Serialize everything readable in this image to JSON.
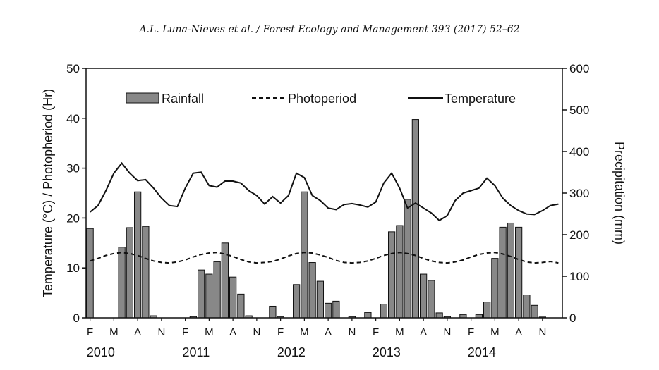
{
  "header": {
    "citation": "A.L. Luna-Nieves et al. / Forest Ecology and Management 393 (2017) 52–62"
  },
  "chart_data": {
    "type": "bar",
    "xlabel": "",
    "ylabel_left": "Temperature (°C) / Photopheriod (Hr)",
    "ylabel_right": "Precipitation (mm)",
    "ylim_left": [
      0,
      50
    ],
    "ylim_right": [
      0,
      600
    ],
    "yticks_left": [
      0,
      10,
      20,
      30,
      40,
      50
    ],
    "yticks_right": [
      0,
      100,
      200,
      300,
      400,
      500,
      600
    ],
    "grid": false,
    "legend": {
      "placement": "top",
      "rainfall": "Rainfall",
      "photoperiod": "Photoperiod",
      "temperature": "Temperature"
    },
    "month_tick_labels": [
      "F",
      "M",
      "A",
      "N",
      "F",
      "M",
      "A",
      "N",
      "F",
      "M",
      "A",
      "N",
      "F",
      "M",
      "A",
      "N",
      "F",
      "M",
      "A",
      "N"
    ],
    "years": [
      "2010",
      "2011",
      "2012",
      "2013",
      "2014"
    ],
    "months": [
      "2010-02",
      "2010-03",
      "2010-04",
      "2010-05",
      "2010-06",
      "2010-07",
      "2010-08",
      "2010-09",
      "2010-10",
      "2010-11",
      "2010-12",
      "2011-01",
      "2011-02",
      "2011-03",
      "2011-04",
      "2011-05",
      "2011-06",
      "2011-07",
      "2011-08",
      "2011-09",
      "2011-10",
      "2011-11",
      "2011-12",
      "2012-01",
      "2012-02",
      "2012-03",
      "2012-04",
      "2012-05",
      "2012-06",
      "2012-07",
      "2012-08",
      "2012-09",
      "2012-10",
      "2012-11",
      "2012-12",
      "2013-01",
      "2013-02",
      "2013-03",
      "2013-04",
      "2013-05",
      "2013-06",
      "2013-07",
      "2013-08",
      "2013-09",
      "2013-10",
      "2013-11",
      "2013-12",
      "2014-01",
      "2014-02",
      "2014-03",
      "2014-04",
      "2014-05",
      "2014-06",
      "2014-07",
      "2014-08",
      "2014-09",
      "2014-10",
      "2014-11",
      "2014-12",
      "2015-01"
    ],
    "series": [
      {
        "name": "Rainfall",
        "axis": "right",
        "values": [
          215,
          0,
          0,
          0,
          170,
          217,
          303,
          220,
          5,
          0,
          0,
          0,
          0,
          3,
          115,
          105,
          135,
          180,
          98,
          57,
          5,
          0,
          0,
          28,
          3,
          0,
          80,
          303,
          133,
          88,
          35,
          40,
          0,
          3,
          0,
          13,
          0,
          33,
          207,
          222,
          285,
          477,
          105,
          90,
          12,
          3,
          0,
          8,
          0,
          8,
          38,
          143,
          218,
          228,
          218,
          55,
          30,
          2,
          0,
          0
        ]
      },
      {
        "name": "Photoperiod",
        "axis": "left",
        "values": [
          11.4,
          11.9,
          12.5,
          12.9,
          13.1,
          12.9,
          12.5,
          11.9,
          11.4,
          11.1,
          11.0,
          11.2,
          11.6,
          12.2,
          12.7,
          13.0,
          13.1,
          12.8,
          12.3,
          11.7,
          11.2,
          11.0,
          11.1,
          11.3,
          11.8,
          12.4,
          12.9,
          13.1,
          13.0,
          12.6,
          12.1,
          11.5,
          11.1,
          11.0,
          11.1,
          11.4,
          11.9,
          12.5,
          12.9,
          13.1,
          12.9,
          12.5,
          11.9,
          11.4,
          11.1,
          11.0,
          11.2,
          11.6,
          12.2,
          12.7,
          13.0,
          13.1,
          12.8,
          12.3,
          11.7,
          11.2,
          11.0,
          11.1,
          11.3,
          11.0
        ]
      },
      {
        "name": "Temperature",
        "axis": "left",
        "values": [
          21.2,
          22.5,
          25.5,
          29.0,
          31.0,
          29.0,
          27.5,
          27.7,
          26.0,
          24.0,
          22.5,
          22.3,
          26.0,
          29.0,
          29.2,
          26.5,
          26.2,
          27.4,
          27.4,
          27.0,
          25.5,
          24.5,
          22.8,
          24.3,
          23.0,
          24.5,
          29.0,
          28.1,
          24.5,
          23.5,
          22.0,
          21.7,
          22.7,
          22.9,
          22.6,
          22.2,
          23.2,
          27.0,
          29.0,
          26.0,
          22.0,
          23.0,
          22.0,
          21.0,
          19.5,
          20.5,
          23.5,
          25.0,
          25.5,
          26.0,
          28.0,
          26.5,
          24.0,
          22.5,
          21.5,
          20.8,
          20.7,
          21.5,
          22.5,
          22.8
        ]
      }
    ]
  }
}
